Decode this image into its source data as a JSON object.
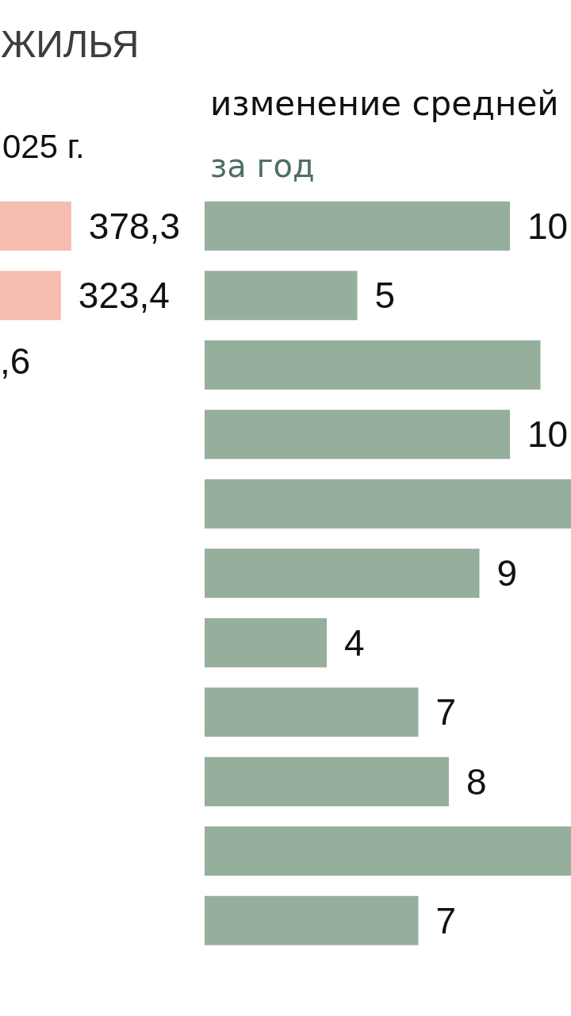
{
  "chart_data": [
    {
      "type": "bar",
      "orientation": "horizontal",
      "title": "ЖИЛЬЯ",
      "subtitle": "025 г.",
      "categories": [
        null,
        null
      ],
      "values": [
        378.3,
        323.4
      ],
      "value_labels": [
        "378,3",
        "323,4"
      ],
      "annotations": [
        ",6"
      ],
      "color": "#f6bcb0",
      "tick_labels": false
    },
    {
      "type": "bar",
      "orientation": "horizontal",
      "title": "изменение средней",
      "subtitle": "за год",
      "categories": [
        null,
        null,
        null,
        null,
        null,
        null,
        null,
        null,
        null,
        null,
        null
      ],
      "values": [
        10,
        5,
        11,
        10,
        12,
        9,
        4,
        7,
        8,
        12,
        7
      ],
      "value_labels": [
        "10",
        "5",
        null,
        "10",
        null,
        "9",
        "4",
        "7",
        "8",
        null,
        "7"
      ],
      "color": "#96ae9c",
      "xlim": [
        0,
        12
      ],
      "tick_labels": false
    }
  ]
}
